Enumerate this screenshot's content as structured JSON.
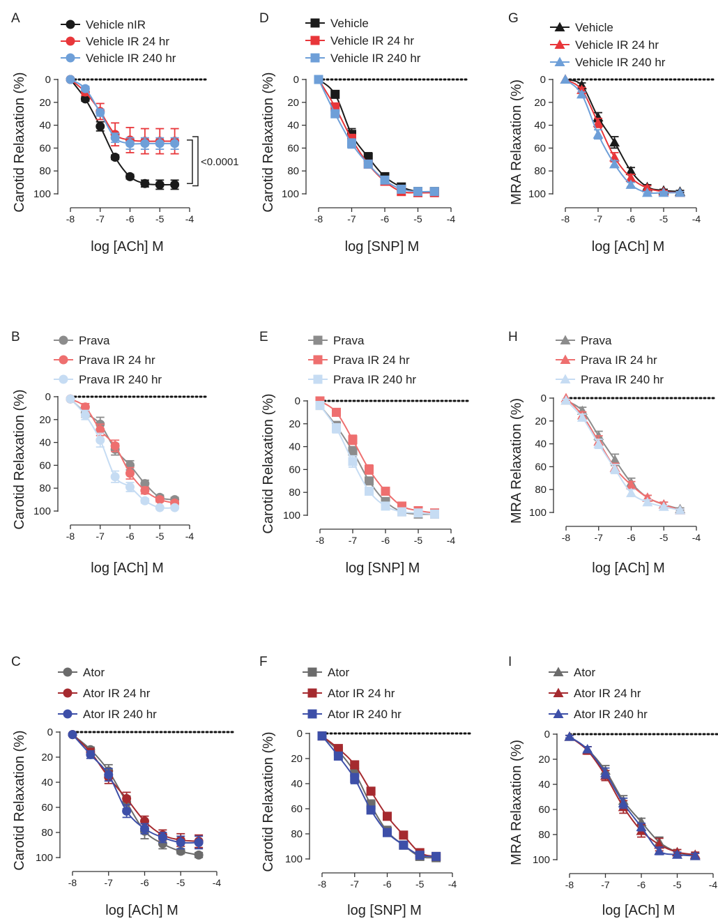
{
  "figure": {
    "colors": {
      "black": "#1a1a1a",
      "red": "#e8363a",
      "blue": "#6e9fd8",
      "gray": "#8c8c8c",
      "lightred": "#ee6f6f",
      "lightblue": "#c6dcf3",
      "darkgray": "#6b6b6b",
      "darkred": "#a52a2f",
      "navy": "#3d4fa8"
    }
  },
  "chart_data": [
    {
      "panel": "A",
      "type": "line",
      "marker": "circle",
      "ylabel": "Carotid Relaxation (%)",
      "xlabel": "log [ACh] M",
      "xlim": [
        -8,
        -4
      ],
      "ylim": [
        0,
        100
      ],
      "y_inverted": true,
      "xticks": [
        "-8",
        "-7",
        "-6",
        "-5",
        "-4"
      ],
      "yticks": [
        "0",
        "20",
        "40",
        "60",
        "80",
        "100"
      ],
      "annotation": "<0.0001",
      "series": [
        {
          "name": "Vehicle nIR",
          "color": "#1a1a1a",
          "x": [
            -8,
            -7.5,
            -7,
            -6.5,
            -6,
            -5.5,
            -5,
            -4.5
          ],
          "y": [
            0,
            17,
            41,
            68,
            85,
            91,
            92,
            92
          ],
          "err": [
            0,
            2,
            4,
            2,
            2,
            3,
            4,
            4
          ]
        },
        {
          "name": "Vehicle IR 24 hr",
          "color": "#e8363a",
          "x": [
            -8,
            -7.5,
            -7,
            -6.5,
            -6,
            -5.5,
            -5,
            -4.5
          ],
          "y": [
            0,
            11,
            28,
            48,
            53,
            54,
            54,
            54
          ],
          "err": [
            0,
            3,
            7,
            10,
            11,
            11,
            11,
            11
          ]
        },
        {
          "name": "Vehicle IR 240 hr",
          "color": "#6e9fd8",
          "x": [
            -8,
            -7.5,
            -7,
            -6.5,
            -6,
            -5.5,
            -5,
            -4.5
          ],
          "y": [
            0,
            8,
            29,
            51,
            56,
            56,
            56,
            56
          ],
          "err": [
            0,
            2,
            3,
            4,
            5,
            5,
            5,
            5
          ]
        }
      ]
    },
    {
      "panel": "D",
      "type": "line",
      "marker": "square",
      "ylabel": "Carotid Relaxation (%)",
      "xlabel": "log [SNP] M",
      "xlim": [
        -8,
        -4
      ],
      "ylim": [
        0,
        100
      ],
      "y_inverted": true,
      "xticks": [
        "-8",
        "-7",
        "-6",
        "-5",
        "-4"
      ],
      "yticks": [
        "0",
        "20",
        "40",
        "60",
        "80",
        "100"
      ],
      "series": [
        {
          "name": "Vehicle",
          "color": "#1a1a1a",
          "x": [
            -8,
            -7.5,
            -7,
            -6.5,
            -6,
            -5.5,
            -5,
            -4.5
          ],
          "y": [
            0,
            13,
            48,
            68,
            85,
            94,
            98,
            98
          ],
          "err": [
            0,
            3,
            5,
            4,
            3,
            2,
            2,
            2
          ]
        },
        {
          "name": "Vehicle IR 24 hr",
          "color": "#e8363a",
          "x": [
            -8,
            -7.5,
            -7,
            -6.5,
            -6,
            -5.5,
            -5,
            -4.5
          ],
          "y": [
            0,
            24,
            52,
            74,
            89,
            98,
            99,
            99
          ],
          "err": [
            0,
            3,
            4,
            3,
            2,
            1,
            1,
            1
          ]
        },
        {
          "name": "Vehicle IR 240 hr",
          "color": "#6e9fd8",
          "x": [
            -8,
            -7.5,
            -7,
            -6.5,
            -6,
            -5.5,
            -5,
            -4.5
          ],
          "y": [
            0,
            30,
            56,
            74,
            88,
            96,
            98,
            98
          ],
          "err": [
            0,
            3,
            4,
            3,
            2,
            1,
            1,
            1
          ]
        }
      ]
    },
    {
      "panel": "G",
      "type": "line",
      "marker": "triangle",
      "ylabel": "MRA Relaxation (%)",
      "xlabel": "log [ACh] M",
      "xlim": [
        -8,
        -4
      ],
      "ylim": [
        0,
        100
      ],
      "y_inverted": true,
      "xticks": [
        "-8",
        "-7",
        "-6",
        "-5",
        "-4"
      ],
      "yticks": [
        "0",
        "20",
        "40",
        "60",
        "80",
        "100"
      ],
      "series": [
        {
          "name": "Vehicle",
          "color": "#1a1a1a",
          "x": [
            -8,
            -7.5,
            -7,
            -6.5,
            -6,
            -5.5,
            -5,
            -4.5
          ],
          "y": [
            0,
            5,
            33,
            55,
            80,
            94,
            97,
            98
          ],
          "err": [
            0,
            2,
            4,
            5,
            3,
            2,
            1,
            1
          ]
        },
        {
          "name": "Vehicle IR 24 hr",
          "color": "#e8363a",
          "x": [
            -8,
            -7.5,
            -7,
            -6.5,
            -6,
            -5.5,
            -5,
            -4.5
          ],
          "y": [
            0,
            9,
            38,
            68,
            86,
            95,
            98,
            99
          ],
          "err": [
            0,
            2,
            4,
            4,
            3,
            2,
            1,
            1
          ]
        },
        {
          "name": "Vehicle IR 240 hr",
          "color": "#6e9fd8",
          "x": [
            -8,
            -7.5,
            -7,
            -6.5,
            -6,
            -5.5,
            -5,
            -4.5
          ],
          "y": [
            0,
            13,
            48,
            74,
            92,
            99,
            99,
            99
          ],
          "err": [
            0,
            2,
            4,
            3,
            2,
            1,
            1,
            1
          ]
        }
      ]
    },
    {
      "panel": "B",
      "type": "line",
      "marker": "circle",
      "ylabel": "Carotid Relaxation  (%)",
      "xlabel": "log [ACh] M",
      "xlim": [
        -8,
        -4
      ],
      "ylim": [
        0,
        100
      ],
      "y_inverted": true,
      "xticks": [
        "-8",
        "-7",
        "-6",
        "-5",
        "-4"
      ],
      "yticks": [
        "0",
        "20",
        "40",
        "60",
        "80",
        "100"
      ],
      "series": [
        {
          "name": "Prava",
          "color": "#8c8c8c",
          "x": [
            -8,
            -7.5,
            -7,
            -6.5,
            -6,
            -5.5,
            -5,
            -4.5
          ],
          "y": [
            2,
            14,
            24,
            46,
            60,
            76,
            88,
            90
          ],
          "err": [
            1,
            4,
            6,
            5,
            4,
            3,
            2,
            2
          ]
        },
        {
          "name": "Prava IR 24 hr",
          "color": "#ee6f6f",
          "x": [
            -8,
            -7.5,
            -7,
            -6.5,
            -6,
            -5.5,
            -5,
            -4.5
          ],
          "y": [
            2,
            9,
            29,
            43,
            67,
            82,
            90,
            93
          ],
          "err": [
            1,
            3,
            5,
            5,
            5,
            3,
            2,
            2
          ]
        },
        {
          "name": "Prava IR 240 hr",
          "color": "#c6dcf3",
          "x": [
            -8,
            -7.5,
            -7,
            -6.5,
            -6,
            -5.5,
            -5,
            -4.5
          ],
          "y": [
            2,
            16,
            38,
            70,
            79,
            91,
            97,
            97
          ],
          "err": [
            1,
            4,
            6,
            5,
            4,
            2,
            1,
            1
          ]
        }
      ]
    },
    {
      "panel": "E",
      "type": "line",
      "marker": "square",
      "ylabel": "Carotid Relaxation (%)",
      "xlabel": "log [SNP] M",
      "xlim": [
        -8,
        -4
      ],
      "ylim": [
        0,
        100
      ],
      "y_inverted": true,
      "xticks": [
        "-8",
        "-7",
        "-6",
        "-5",
        "-4"
      ],
      "yticks": [
        "0",
        "20",
        "40",
        "60",
        "80",
        "100"
      ],
      "series": [
        {
          "name": "Prava",
          "color": "#8c8c8c",
          "x": [
            -8,
            -7.5,
            -7,
            -6.5,
            -6,
            -5.5,
            -5,
            -4.5
          ],
          "y": [
            4,
            22,
            44,
            70,
            88,
            97,
            99,
            99
          ],
          "err": [
            1,
            4,
            4,
            3,
            3,
            2,
            1,
            1
          ]
        },
        {
          "name": "Prava IR 24 hr",
          "color": "#ee6f6f",
          "x": [
            -8,
            -7.5,
            -7,
            -6.5,
            -6,
            -5.5,
            -5,
            -4.5
          ],
          "y": [
            0,
            10,
            34,
            60,
            79,
            92,
            96,
            98
          ],
          "err": [
            0,
            3,
            4,
            4,
            3,
            2,
            1,
            1
          ]
        },
        {
          "name": "Prava IR 240 hr",
          "color": "#c6dcf3",
          "x": [
            -8,
            -7.5,
            -7,
            -6.5,
            -6,
            -5.5,
            -5,
            -4.5
          ],
          "y": [
            4,
            24,
            53,
            79,
            92,
            97,
            98,
            99
          ],
          "err": [
            1,
            4,
            5,
            3,
            2,
            1,
            1,
            1
          ]
        }
      ]
    },
    {
      "panel": "H",
      "type": "line",
      "marker": "triangle",
      "ylabel": "MRA Relaxation (%)",
      "xlabel": "log [ACh] M",
      "xlim": [
        -8,
        -4
      ],
      "ylim": [
        0,
        100
      ],
      "y_inverted": true,
      "xticks": [
        "-8",
        "-7",
        "-6",
        "-5",
        "-4"
      ],
      "yticks": [
        "0",
        "20",
        "40",
        "60",
        "80",
        "100"
      ],
      "series": [
        {
          "name": "Prava",
          "color": "#8c8c8c",
          "x": [
            -8,
            -7.5,
            -7,
            -6.5,
            -6,
            -5.5,
            -5,
            -4.5
          ],
          "y": [
            2,
            11,
            33,
            54,
            74,
            87,
            93,
            97
          ],
          "err": [
            1,
            3,
            4,
            5,
            4,
            2,
            2,
            1
          ]
        },
        {
          "name": "Prava IR 24 hr",
          "color": "#ee6f6f",
          "x": [
            -8,
            -7.5,
            -7,
            -6.5,
            -6,
            -5.5,
            -5,
            -4.5
          ],
          "y": [
            0,
            15,
            38,
            61,
            76,
            87,
            93,
            98
          ],
          "err": [
            0,
            3,
            5,
            4,
            3,
            2,
            2,
            1
          ]
        },
        {
          "name": "Prava IR 240 hr",
          "color": "#c6dcf3",
          "x": [
            -8,
            -7.5,
            -7,
            -6.5,
            -6,
            -5.5,
            -5,
            -4.5
          ],
          "y": [
            2,
            17,
            40,
            62,
            83,
            91,
            95,
            98
          ],
          "err": [
            1,
            3,
            4,
            4,
            3,
            2,
            1,
            1
          ]
        }
      ]
    },
    {
      "panel": "C",
      "type": "line",
      "marker": "circle",
      "ylabel": "Carotid Relaxation (%)",
      "xlabel": "log [ACh] M",
      "xlim": [
        -8,
        -4
      ],
      "ylim": [
        0,
        100
      ],
      "y_inverted": true,
      "xticks": [
        "-8",
        "-7",
        "-6",
        "-5",
        "-4"
      ],
      "yticks": [
        "0",
        "20",
        "40",
        "60",
        "80",
        "100"
      ],
      "series": [
        {
          "name": "Ator",
          "color": "#6b6b6b",
          "x": [
            -8,
            -7.5,
            -7,
            -6.5,
            -6,
            -5.5,
            -5,
            -4.5
          ],
          "y": [
            2,
            14,
            31,
            56,
            79,
            89,
            95,
            98
          ],
          "err": [
            1,
            2,
            5,
            5,
            6,
            4,
            2,
            2
          ]
        },
        {
          "name": "Ator IR 24 hr",
          "color": "#a52a2f",
          "x": [
            -8,
            -7.5,
            -7,
            -6.5,
            -6,
            -5.5,
            -5,
            -4.5
          ],
          "y": [
            2,
            16,
            36,
            53,
            71,
            82,
            86,
            87
          ],
          "err": [
            1,
            3,
            5,
            5,
            4,
            4,
            5,
            5
          ]
        },
        {
          "name": "Ator IR 240 hr",
          "color": "#3d4fa8",
          "x": [
            -8,
            -7.5,
            -7,
            -6.5,
            -6,
            -5.5,
            -5,
            -4.5
          ],
          "y": [
            2,
            18,
            34,
            63,
            77,
            84,
            88,
            88
          ],
          "err": [
            1,
            3,
            5,
            5,
            4,
            4,
            5,
            5
          ]
        }
      ]
    },
    {
      "panel": "F",
      "type": "line",
      "marker": "square",
      "ylabel": "Carotid Relaxation (%)",
      "xlabel": "log [SNP] M",
      "xlim": [
        -8,
        -4
      ],
      "ylim": [
        0,
        100
      ],
      "y_inverted": true,
      "xticks": [
        "-8",
        "-7",
        "-6",
        "-5",
        "-4"
      ],
      "yticks": [
        "0",
        "20",
        "40",
        "60",
        "80",
        "100"
      ],
      "series": [
        {
          "name": "Ator",
          "color": "#6b6b6b",
          "x": [
            -8,
            -7.5,
            -7,
            -6.5,
            -6,
            -5.5,
            -5,
            -4.5
          ],
          "y": [
            2,
            14,
            31,
            57,
            78,
            89,
            98,
            99
          ],
          "err": [
            1,
            3,
            4,
            4,
            4,
            2,
            1,
            1
          ]
        },
        {
          "name": "Ator IR 24 hr",
          "color": "#a52a2f",
          "x": [
            -8,
            -7.5,
            -7,
            -6.5,
            -6,
            -5.5,
            -5,
            -4.5
          ],
          "y": [
            2,
            12,
            25,
            46,
            66,
            81,
            95,
            98
          ],
          "err": [
            1,
            2,
            3,
            3,
            3,
            2,
            1,
            1
          ]
        },
        {
          "name": "Ator IR 240 hr",
          "color": "#3d4fa8",
          "x": [
            -8,
            -7.5,
            -7,
            -6.5,
            -6,
            -5.5,
            -5,
            -4.5
          ],
          "y": [
            2,
            18,
            36,
            61,
            79,
            89,
            97,
            98
          ],
          "err": [
            1,
            3,
            4,
            3,
            3,
            2,
            1,
            1
          ]
        }
      ]
    },
    {
      "panel": "I",
      "type": "line",
      "marker": "triangle",
      "ylabel": "MRA  Relaxation  (%)",
      "xlabel": "log [ACh] M",
      "xlim": [
        -8,
        -4
      ],
      "ylim": [
        0,
        100
      ],
      "y_inverted": true,
      "xticks": [
        "-8",
        "-7",
        "-6",
        "-5",
        "-4"
      ],
      "yticks": [
        "0",
        "20",
        "40",
        "60",
        "80",
        "100"
      ],
      "series": [
        {
          "name": "Ator",
          "color": "#6b6b6b",
          "x": [
            -8,
            -7.5,
            -7,
            -6.5,
            -6,
            -5.5,
            -5,
            -4.5
          ],
          "y": [
            2,
            12,
            29,
            53,
            70,
            86,
            94,
            97
          ],
          "err": [
            1,
            2,
            4,
            4,
            3,
            4,
            2,
            2
          ]
        },
        {
          "name": "Ator IR 24 hr",
          "color": "#a52a2f",
          "x": [
            -8,
            -7.5,
            -7,
            -6.5,
            -6,
            -5.5,
            -5,
            -4.5
          ],
          "y": [
            2,
            13,
            33,
            58,
            77,
            88,
            94,
            96
          ],
          "err": [
            1,
            3,
            4,
            5,
            5,
            5,
            2,
            2
          ]
        },
        {
          "name": "Ator IR 240 hr",
          "color": "#3d4fa8",
          "x": [
            -8,
            -7.5,
            -7,
            -6.5,
            -6,
            -5.5,
            -5,
            -4.5
          ],
          "y": [
            2,
            12,
            31,
            55,
            74,
            93,
            96,
            97
          ],
          "err": [
            1,
            2,
            4,
            4,
            3,
            3,
            2,
            2
          ]
        }
      ]
    }
  ]
}
